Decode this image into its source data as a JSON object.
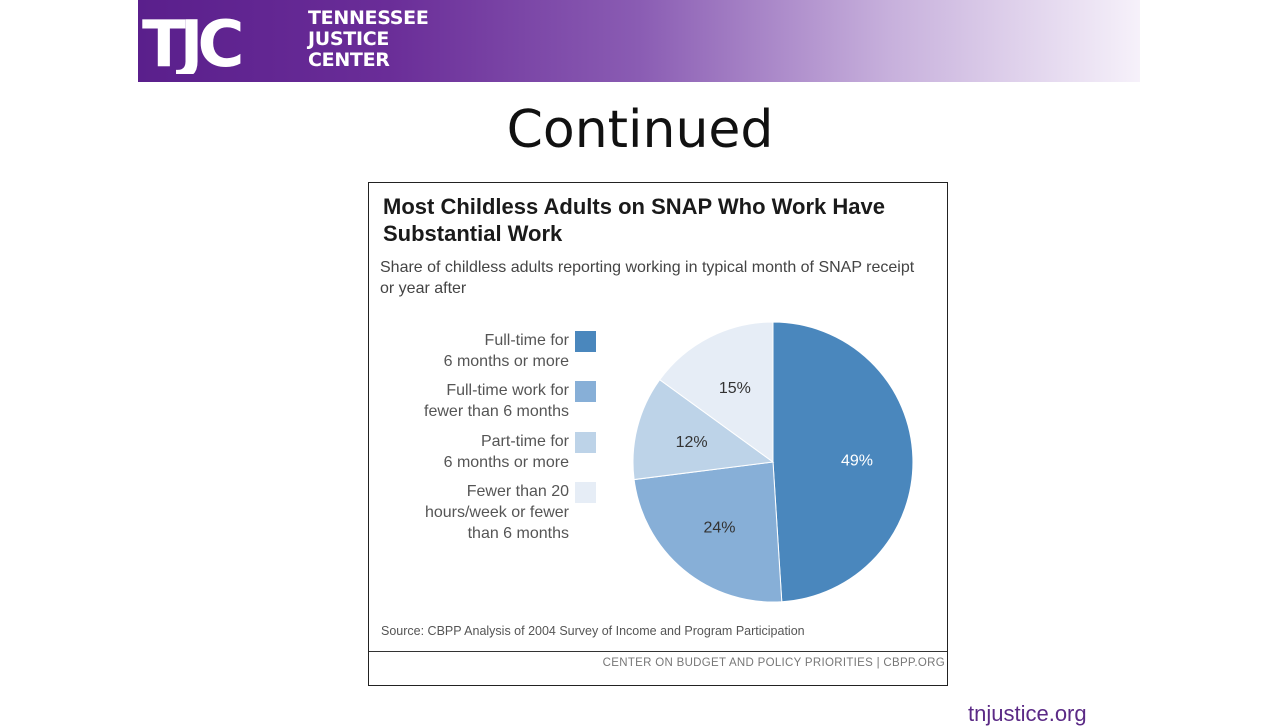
{
  "header": {
    "logo_mark": "TJC",
    "org_name_lines": [
      "TENNESSEE",
      "JUSTICE",
      "CENTER"
    ]
  },
  "slide": {
    "title": "Continued",
    "url": "tnjustice.org"
  },
  "chart_data": {
    "type": "pie",
    "title": "Most Childless Adults on SNAP Who Work Have Substantial Work",
    "subtitle": "Share of childless adults reporting working in typical month of SNAP receipt or year after",
    "slices": [
      {
        "label": "Full-time for 6 months or more",
        "legend_lines": [
          "Full-time for",
          "6 months or more"
        ],
        "value": 49,
        "value_label": "49%",
        "color": "#4a87bd"
      },
      {
        "label": "Full-time work for fewer than 6 months",
        "legend_lines": [
          "Full-time work for",
          "fewer than 6 months"
        ],
        "value": 24,
        "value_label": "24%",
        "color": "#87afd7"
      },
      {
        "label": "Part-time for 6 months or more",
        "legend_lines": [
          "Part-time for",
          "6 months or more"
        ],
        "value": 12,
        "value_label": "12%",
        "color": "#bdd3e8"
      },
      {
        "label": "Fewer than 20 hours/week or fewer than 6 months",
        "legend_lines": [
          "Fewer than 20",
          "hours/week or fewer",
          "than 6 months"
        ],
        "value": 15,
        "value_label": "15%",
        "color": "#e6edf6"
      }
    ],
    "legend_position": "left",
    "source": "Source: CBPP Analysis of 2004 Survey of Income and Program Participation",
    "credit": "CENTER ON BUDGET AND POLICY PRIORITIES | CBPP.ORG"
  }
}
